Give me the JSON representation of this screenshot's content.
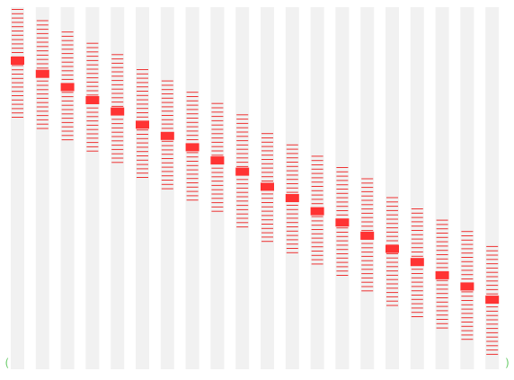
{
  "colors": {
    "background": "#ffffff",
    "track": "#f1f1f1",
    "tick": "#ee3333",
    "highlight": "#ff3333",
    "bracket": "#6ccc6c"
  },
  "brackets": {
    "left": "(",
    "right": ")"
  },
  "columns": [
    {
      "span": [
        0.025,
        0.315
      ],
      "highlight": 0.16
    },
    {
      "span": [
        0.055,
        0.345
      ],
      "highlight": 0.195
    },
    {
      "span": [
        0.085,
        0.375
      ],
      "highlight": 0.23
    },
    {
      "span": [
        0.115,
        0.405
      ],
      "highlight": 0.265
    },
    {
      "span": [
        0.145,
        0.435
      ],
      "highlight": 0.295
    },
    {
      "span": [
        0.185,
        0.475
      ],
      "highlight": 0.33
    },
    {
      "span": [
        0.215,
        0.505
      ],
      "highlight": 0.36
    },
    {
      "span": [
        0.245,
        0.535
      ],
      "highlight": 0.39
    },
    {
      "span": [
        0.275,
        0.565
      ],
      "highlight": 0.425
    },
    {
      "span": [
        0.305,
        0.61
      ],
      "highlight": 0.455
    },
    {
      "span": [
        0.355,
        0.645
      ],
      "highlight": 0.495
    },
    {
      "span": [
        0.385,
        0.675
      ],
      "highlight": 0.525
    },
    {
      "span": [
        0.415,
        0.705
      ],
      "highlight": 0.56
    },
    {
      "span": [
        0.445,
        0.735
      ],
      "highlight": 0.59
    },
    {
      "span": [
        0.475,
        0.775
      ],
      "highlight": 0.625
    },
    {
      "span": [
        0.525,
        0.815
      ],
      "highlight": 0.66
    },
    {
      "span": [
        0.555,
        0.845
      ],
      "highlight": 0.695
    },
    {
      "span": [
        0.585,
        0.875
      ],
      "highlight": 0.73
    },
    {
      "span": [
        0.615,
        0.905
      ],
      "highlight": 0.76
    },
    {
      "span": [
        0.655,
        0.945
      ],
      "highlight": 0.795
    }
  ]
}
